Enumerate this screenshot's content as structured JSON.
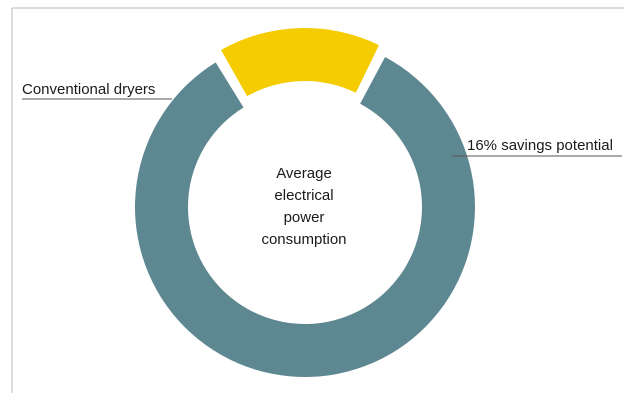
{
  "chart_data": {
    "type": "pie",
    "variant": "donut",
    "center_label": [
      "Average",
      "electrical",
      "power",
      "consumption"
    ],
    "slices": [
      {
        "label": "Conventional dryers",
        "value": 84,
        "color": "#5e8891"
      },
      {
        "label": "16% savings potential",
        "value": 16,
        "color": "#f5cc00",
        "exploded": true
      }
    ],
    "legend": "none",
    "grid": false,
    "colors": {
      "frame": "#b8b8b8",
      "leader": "#555555"
    }
  }
}
